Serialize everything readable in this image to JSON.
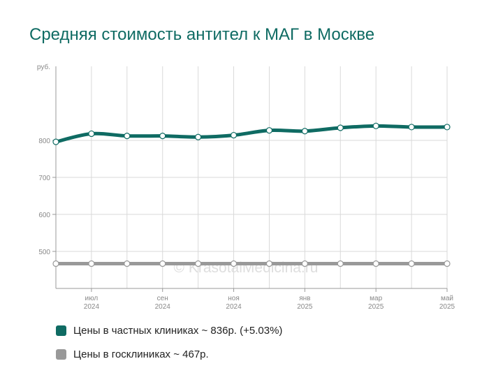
{
  "chart_data": {
    "type": "line",
    "title": "Средняя стоимость антител к МАГ в Москве",
    "ylabel": "руб.",
    "ylim": [
      400,
      1000
    ],
    "yticks": [
      500,
      600,
      700,
      800
    ],
    "x_tick_labels": [
      {
        "month": "июл",
        "year": "2024"
      },
      {
        "month": "сен",
        "year": "2024"
      },
      {
        "month": "ноя",
        "year": "2024"
      },
      {
        "month": "янв",
        "year": "2025"
      },
      {
        "month": "мар",
        "year": "2025"
      },
      {
        "month": "май",
        "year": "2025"
      }
    ],
    "grid": true,
    "watermark": "© KrasotaiMedicina.ru",
    "series": [
      {
        "name": "Цены в частных клиниках",
        "color": "#0f6b63",
        "values": [
          796,
          818,
          812,
          812,
          809,
          814,
          827,
          825,
          834,
          839,
          836,
          836
        ]
      },
      {
        "name": "Цены в госклиниках",
        "color": "#999999",
        "values": [
          467,
          467,
          467,
          467,
          467,
          467,
          467,
          467,
          467,
          467,
          467,
          467
        ]
      }
    ],
    "legend": [
      {
        "label": "Цены в частных клиниках ~ 836р. (+5.03%)",
        "color": "#0f6b63"
      },
      {
        "label": "Цены в госклиниках ~ 467р.",
        "color": "#999999"
      }
    ]
  }
}
